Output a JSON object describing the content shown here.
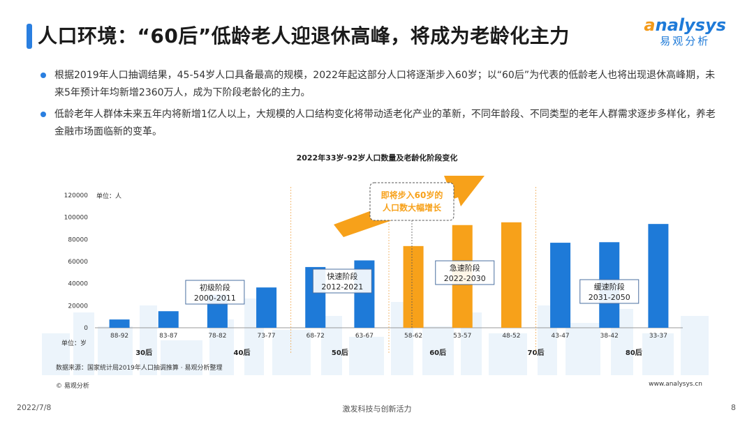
{
  "header": {
    "title": "人口环境：“60后”低龄老人迎退休高峰，将成为老龄化主力",
    "logo_en_first": "a",
    "logo_en_rest": "nalysys",
    "logo_cn": "易观分析"
  },
  "bullets": [
    "根据2019年人口抽调结果，45-54岁人口具备最高的规模，2022年起这部分人口将逐渐步入60岁；以“60后”为代表的低龄老人也将出现退休高峰期，未来5年预计年均新增2360万人，成为下阶段老龄化的主力。",
    "低龄老年人群体未来五年内将新增1亿人以上，大规模的人口结构变化将带动适老化产业的革新，不同年龄段、不同类型的老年人群需求逐步多样化，养老金融市场面临新的变革。"
  ],
  "colors": {
    "blue": "#1e7ad8",
    "orange": "#f7a11a",
    "accent": "#2a7fe0"
  },
  "chart_data": {
    "type": "bar",
    "title": "2022年33岁-92岁人口数量及老龄化阶段变化",
    "ylabel": "单位：人",
    "xlabel": "单位：岁",
    "ylim": [
      0,
      120000
    ],
    "yticks": [
      "0",
      "20000",
      "40000",
      "60000",
      "80000",
      "100000",
      "120000"
    ],
    "categories": [
      "88-92",
      "83-87",
      "78-82",
      "73-77",
      "68-72",
      "63-67",
      "58-62",
      "53-57",
      "48-52",
      "43-47",
      "38-42",
      "33-37"
    ],
    "values": [
      7500,
      15000,
      30000,
      36500,
      55000,
      61000,
      74000,
      93000,
      95500,
      77000,
      77500,
      94000
    ],
    "bar_colors": [
      "blue",
      "blue",
      "blue",
      "blue",
      "blue",
      "blue",
      "orange",
      "orange",
      "orange",
      "blue",
      "blue",
      "blue"
    ],
    "generations": [
      "30后",
      "40后",
      "50后",
      "60后",
      "70后",
      "80后"
    ],
    "stages": [
      {
        "name": "初级阶段",
        "years": "2000-2011"
      },
      {
        "name": "快速阶段",
        "years": "2012-2021"
      },
      {
        "name": "急速阶段",
        "years": "2022-2030"
      },
      {
        "name": "缓速阶段",
        "years": "2031-2050"
      }
    ],
    "callout_line1": "即将步入60岁的",
    "callout_line2": "人口数大幅增长"
  },
  "footer": {
    "source": "数据来源：国家统计局2019年人口抽调推算 · 易观分析整理",
    "copyright": "© 易观分析",
    "site": "www.analysys.cn",
    "date": "2022/7/8",
    "slogan": "激发科技与创新活力",
    "page": "8"
  }
}
